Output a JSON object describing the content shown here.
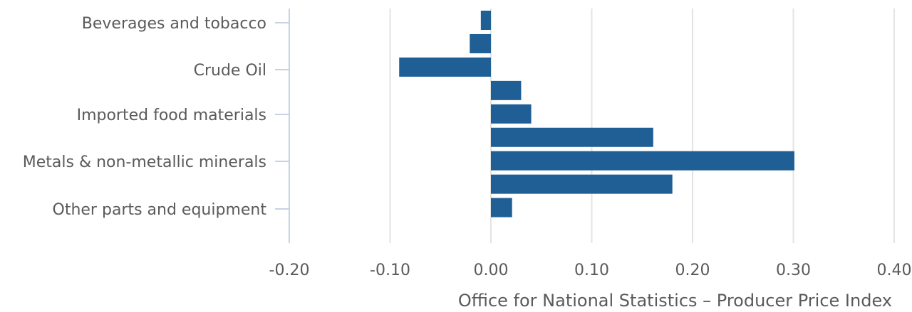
{
  "chart_data": {
    "type": "bar",
    "orientation": "horizontal",
    "x": [
      -0.2,
      -0.1,
      0.0,
      0.1,
      0.2,
      0.3,
      0.4
    ],
    "xtick_labels": [
      "-0.20",
      "-0.10",
      "0.00",
      "0.10",
      "0.20",
      "0.30",
      "0.40"
    ],
    "xlim": [
      -0.2,
      0.4
    ],
    "xlabel": "Office for National Statistics – Producer Price Index",
    "grid": "vertical",
    "category_labels": [
      "Beverages and tobacco",
      "Crude Oil",
      "Imported food materials",
      "Metals & non-metallic minerals",
      "Other parts and equipment"
    ],
    "bars": [
      -0.01,
      -0.021,
      -0.091,
      0.03,
      0.04,
      0.161,
      0.301,
      0.18,
      0.021
    ],
    "colors": {
      "bar": "#1f5f96",
      "grid": "#e3e3e3",
      "axis": "#c5d3e6",
      "text": "#5a5a5a"
    }
  }
}
